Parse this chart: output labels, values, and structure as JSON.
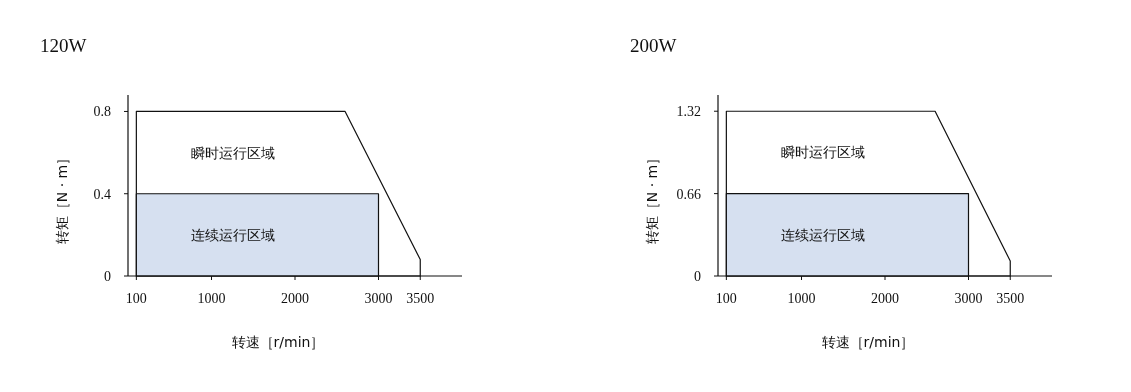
{
  "chart_data": [
    {
      "type": "area",
      "title": "120W",
      "xlabel": "转速［r/min］",
      "ylabel": "转矩［N · m］",
      "xlim": [
        0,
        4000
      ],
      "ylim": [
        0,
        0.88
      ],
      "xticks": [
        100,
        1000,
        2000,
        3000,
        3500
      ],
      "yticks": [
        0,
        0.4,
        0.8
      ],
      "series": [
        {
          "name": "瞬时运行区域",
          "color": "#ffffff",
          "x": [
            100,
            2600,
            3500
          ],
          "values": [
            0.8,
            0.8,
            0.08
          ]
        },
        {
          "name": "连续运行区域",
          "color": "#d6e0f0",
          "x": [
            100,
            3000
          ],
          "values": [
            0.4,
            0.4
          ]
        }
      ]
    },
    {
      "type": "area",
      "title": "200W",
      "xlabel": "转速［r/min］",
      "ylabel": "转矩［N · m］",
      "xlim": [
        0,
        4000
      ],
      "ylim": [
        0,
        1.45
      ],
      "xticks": [
        100,
        1000,
        2000,
        3000,
        3500
      ],
      "yticks": [
        0,
        0.66,
        1.32
      ],
      "series": [
        {
          "name": "瞬时运行区域",
          "color": "#ffffff",
          "x": [
            100,
            2600,
            3500
          ],
          "values": [
            1.32,
            1.32,
            0.12
          ]
        },
        {
          "name": "连续运行区域",
          "color": "#d6e0f0",
          "x": [
            100,
            3000
          ],
          "values": [
            0.66,
            0.66
          ]
        }
      ]
    }
  ]
}
